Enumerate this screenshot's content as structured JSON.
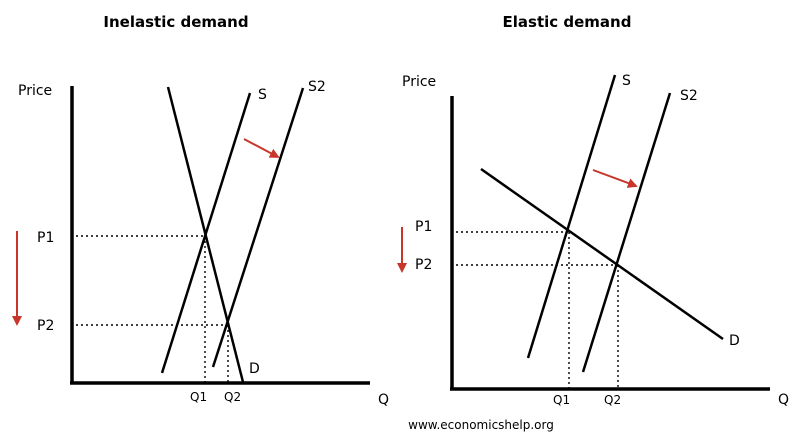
{
  "panels": [
    {
      "title": "Inelastic demand",
      "y_axis_label": "Price",
      "x_axis_label": "Q",
      "supply_label": "S",
      "supply2_label": "S2",
      "demand_label": "D",
      "price_labels": [
        "P1",
        "P2"
      ],
      "quantity_labels": [
        "Q1",
        "Q2"
      ]
    },
    {
      "title": "Elastic demand",
      "y_axis_label": "Price",
      "x_axis_label": "Q",
      "supply_label": "S",
      "supply2_label": "S2",
      "demand_label": "D",
      "price_labels": [
        "P1",
        "P2"
      ],
      "quantity_labels": [
        "Q1",
        "Q2"
      ]
    }
  ],
  "footer": {
    "source": "www.economicshelp.org"
  },
  "colors": {
    "lines": "#000000",
    "shift_arrow": "#c8352a"
  }
}
